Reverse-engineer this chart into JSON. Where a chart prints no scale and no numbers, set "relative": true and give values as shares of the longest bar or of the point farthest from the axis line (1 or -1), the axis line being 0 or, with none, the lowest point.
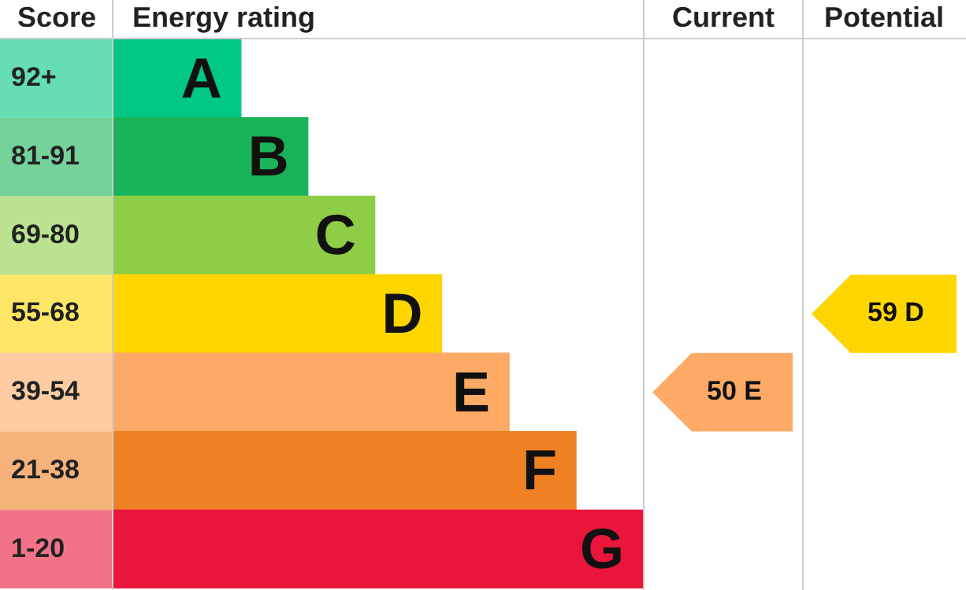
{
  "chart_data": {
    "type": "bar",
    "orientation": "horizontal",
    "relative": true,
    "categories": [
      "A",
      "B",
      "C",
      "D",
      "E",
      "F",
      "G"
    ],
    "y2_categories": [
      "92+",
      "81-91",
      "69-80",
      "55-68",
      "39-54",
      "21-38",
      "1-20"
    ],
    "values": [
      0.243,
      0.369,
      0.495,
      0.621,
      0.748,
      0.874,
      1
    ],
    "colors": [
      "#00c781",
      "#19b459",
      "#8dce46",
      "#ffd500",
      "#fcaa65",
      "#ef8023",
      "#e9153b"
    ],
    "annotations": [
      "Score",
      "Energy rating",
      "Current",
      "Potential",
      "50 E",
      "59 D"
    ]
  }
}
